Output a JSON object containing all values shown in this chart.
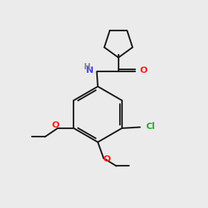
{
  "bg_color": "#ebebeb",
  "bond_color": "#1a1a1a",
  "N_color": "#4444ff",
  "O_color": "#ff2222",
  "Cl_color": "#22aa22",
  "H_color": "#888888",
  "line_width": 1.6,
  "figsize": [
    3.0,
    3.0
  ],
  "dpi": 100,
  "xlim": [
    0,
    10
  ],
  "ylim": [
    0,
    10
  ]
}
